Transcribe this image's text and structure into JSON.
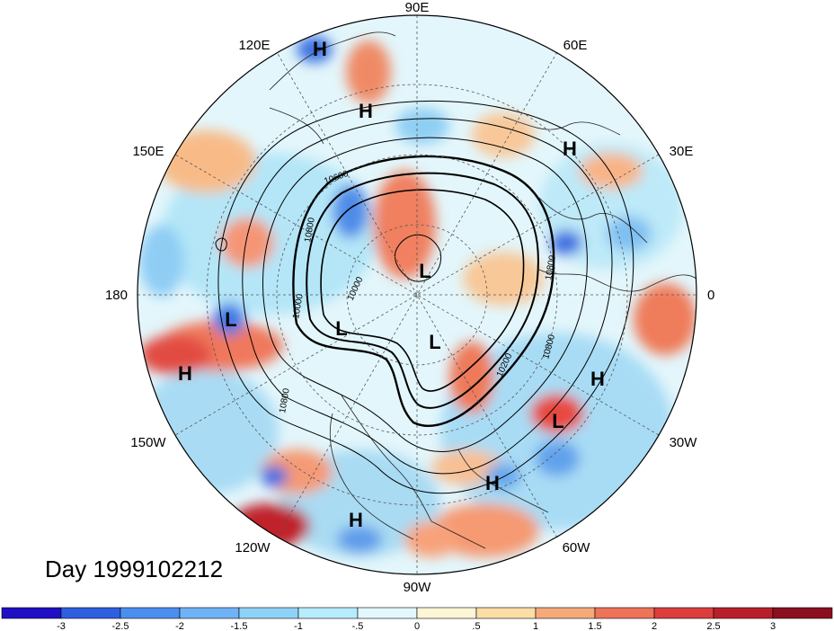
{
  "title": {
    "prefix": "Day",
    "date": "1999102212",
    "text": "Day 1999102212"
  },
  "longitude_labels": [
    {
      "id": "lon-90e",
      "text": "90E",
      "deg": 90
    },
    {
      "id": "lon-60e",
      "text": "60E",
      "deg": 60
    },
    {
      "id": "lon-30e",
      "text": "30E",
      "deg": 30
    },
    {
      "id": "lon-0",
      "text": "0",
      "deg": 0
    },
    {
      "id": "lon-30w",
      "text": "30W",
      "deg": -30
    },
    {
      "id": "lon-60w",
      "text": "60W",
      "deg": -60
    },
    {
      "id": "lon-90w",
      "text": "90W",
      "deg": -90
    },
    {
      "id": "lon-120w",
      "text": "120W",
      "deg": -120
    },
    {
      "id": "lon-150w",
      "text": "150W",
      "deg": -150
    },
    {
      "id": "lon-180",
      "text": "180",
      "deg": 180
    },
    {
      "id": "lon-150e",
      "text": "150E",
      "deg": 150
    },
    {
      "id": "lon-120e",
      "text": "120E",
      "deg": 120
    }
  ],
  "pressure_centers": [
    {
      "type": "H",
      "label": "H",
      "name": "high-120e"
    },
    {
      "type": "H",
      "label": "H",
      "name": "high-110e"
    },
    {
      "type": "H",
      "label": "H",
      "name": "high-40e"
    },
    {
      "type": "L",
      "label": "L",
      "name": "low-pole"
    },
    {
      "type": "L",
      "label": "L",
      "name": "low-north-canada"
    },
    {
      "type": "L",
      "label": "L",
      "name": "low-arctic"
    },
    {
      "type": "L",
      "label": "L",
      "name": "low-dateline"
    },
    {
      "type": "H",
      "label": "H",
      "name": "high-north-pacific"
    },
    {
      "type": "H",
      "label": "H",
      "name": "high-atlantic-east"
    },
    {
      "type": "L",
      "label": "L",
      "name": "low-atlantic"
    },
    {
      "type": "H",
      "label": "H",
      "name": "high-atlantic-west"
    },
    {
      "type": "H",
      "label": "H",
      "name": "high-east-pacific"
    }
  ],
  "contour_labels": [
    "10800",
    "10600",
    "10000",
    "10200",
    "10800",
    "10800",
    "10800",
    "10000"
  ],
  "colorbar": {
    "labels": [
      "-3",
      "-2.5",
      "-2",
      "-1.5",
      "-1",
      "-.5",
      "0",
      ".5",
      "1",
      "1.5",
      "2",
      "2.5",
      "3"
    ],
    "colors": [
      "#1f10c4",
      "#2e5fe0",
      "#4b8ef0",
      "#6fb2f5",
      "#8fd2f8",
      "#b6ecfb",
      "#e2f8fd",
      "#fdf6d6",
      "#fbdda6",
      "#f6a97b",
      "#ee7358",
      "#dd3d3d",
      "#b91f2a",
      "#8b0f1e"
    ]
  }
}
